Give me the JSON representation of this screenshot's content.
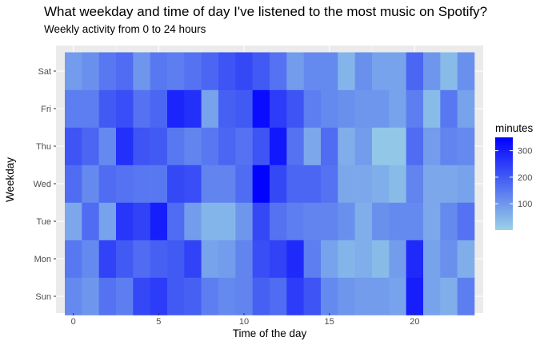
{
  "chart_data": {
    "type": "heatmap",
    "title": "What weekday and time of day I've listened to the most music on Spotify?",
    "subtitle": "Weekly activity from 0 to 24 hours",
    "xlabel": "Time of the day",
    "ylabel": "Weekday",
    "x_ticks": [
      0,
      5,
      10,
      15,
      20
    ],
    "x_range": [
      -0.5,
      23.5
    ],
    "hours": [
      0,
      1,
      2,
      3,
      4,
      5,
      6,
      7,
      8,
      9,
      10,
      11,
      12,
      13,
      14,
      15,
      16,
      17,
      18,
      19,
      20,
      21,
      22,
      23
    ],
    "weekdays": [
      "Sun",
      "Mon",
      "Tue",
      "Wed",
      "Thu",
      "Fri",
      "Sat"
    ],
    "legend": {
      "title": "minutes",
      "ticks": [
        100,
        200,
        300
      ],
      "range": [
        1,
        350
      ],
      "low_color": "#9ad2e6",
      "high_color": "#0000ff"
    },
    "grid": true,
    "legend_position": "right",
    "values": {
      "Sun": [
        120,
        100,
        160,
        140,
        230,
        250,
        200,
        190,
        140,
        120,
        130,
        190,
        170,
        250,
        210,
        120,
        100,
        90,
        90,
        80,
        300,
        80,
        60,
        140
      ],
      "Mon": [
        150,
        120,
        240,
        200,
        170,
        190,
        200,
        240,
        80,
        90,
        130,
        220,
        240,
        280,
        140,
        80,
        50,
        60,
        40,
        90,
        280,
        80,
        110,
        60
      ],
      "Tue": [
        70,
        170,
        80,
        260,
        240,
        300,
        170,
        90,
        50,
        50,
        100,
        230,
        160,
        140,
        130,
        130,
        110,
        60,
        110,
        120,
        120,
        70,
        120,
        160
      ],
      "Wed": [
        170,
        120,
        170,
        160,
        150,
        150,
        230,
        220,
        130,
        130,
        170,
        345,
        230,
        180,
        180,
        160,
        70,
        70,
        60,
        40,
        130,
        70,
        70,
        80
      ],
      "Thu": [
        210,
        180,
        120,
        270,
        210,
        200,
        150,
        130,
        150,
        180,
        160,
        210,
        310,
        160,
        70,
        170,
        60,
        90,
        20,
        20,
        170,
        90,
        130,
        120
      ],
      "Fri": [
        140,
        140,
        200,
        220,
        160,
        180,
        290,
        270,
        80,
        190,
        200,
        330,
        250,
        210,
        140,
        120,
        110,
        100,
        100,
        80,
        140,
        40,
        150,
        80
      ],
      "Sat": [
        90,
        110,
        150,
        170,
        100,
        150,
        140,
        160,
        180,
        210,
        230,
        200,
        160,
        90,
        120,
        120,
        50,
        110,
        80,
        80,
        180,
        100,
        40,
        110
      ]
    }
  }
}
